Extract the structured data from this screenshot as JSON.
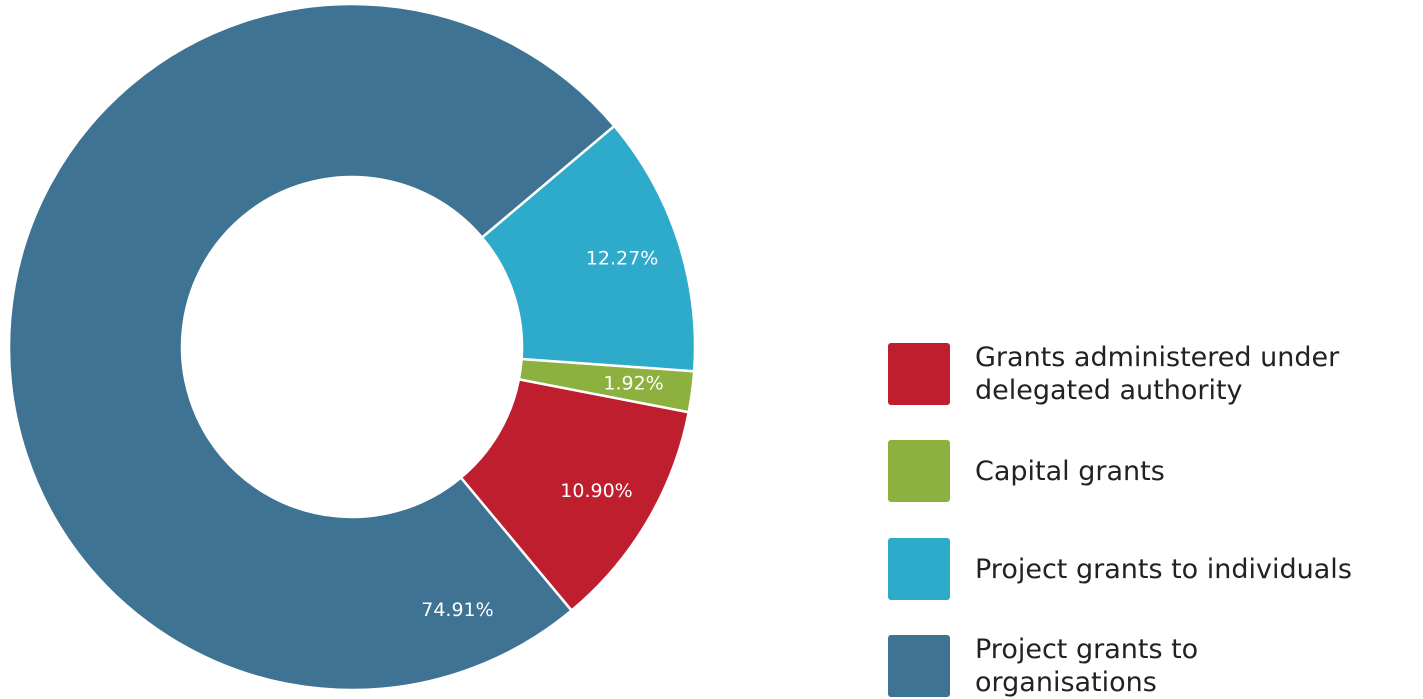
{
  "chart_data": {
    "type": "donut",
    "categories": [
      "Grants administered under delegated authority",
      "Capital grants",
      "Project grants to individuals",
      "Project grants to organisations"
    ],
    "values": [
      10.9,
      1.92,
      12.27,
      74.91
    ],
    "value_labels": [
      "10.90%",
      "1.92%",
      "12.27%",
      "74.91%"
    ],
    "colors": [
      "#be1e2d",
      "#8db13f",
      "#2eaacb",
      "#3e7393"
    ],
    "legend": "right"
  }
}
